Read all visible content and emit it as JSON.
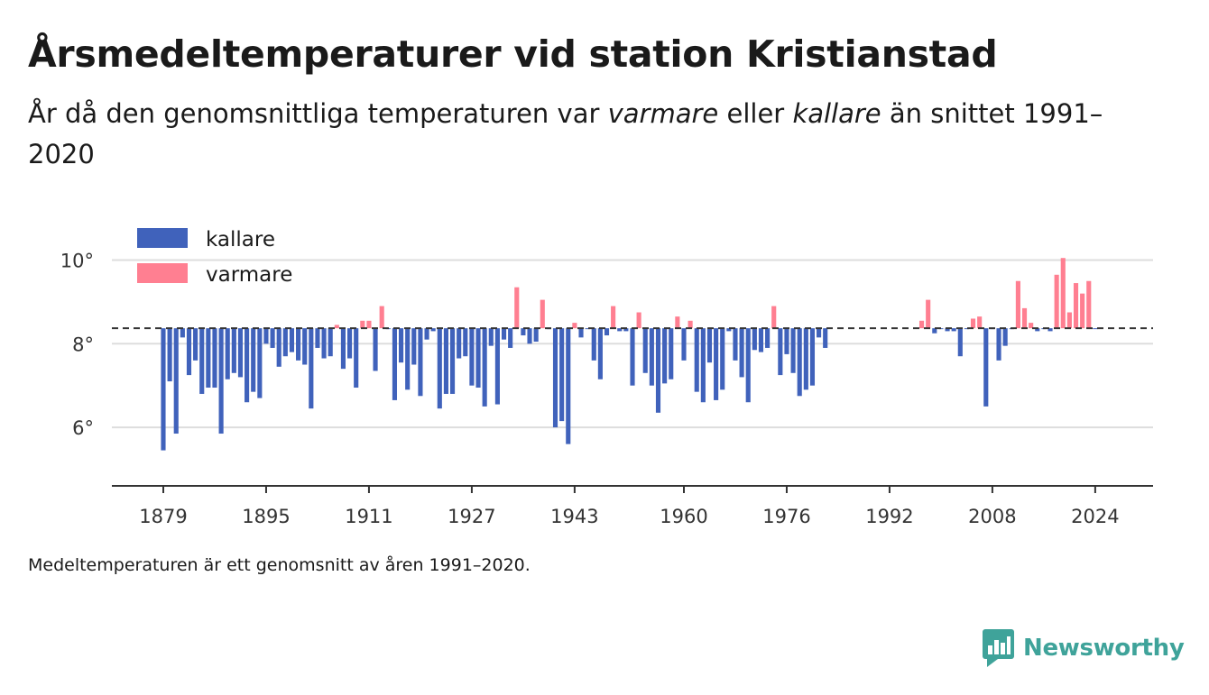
{
  "title": "Årsmedeltemperaturer vid station Kristianstad",
  "subtitle": {
    "part1": "År då den genomsnittliga temperaturen var ",
    "warmer": "varmare",
    "part2": " eller ",
    "colder": "kallare",
    "part3": " än snittet 1991–2020"
  },
  "note": "Medeltemperaturen är ett genomsnitt av åren 1991–2020.",
  "brand": "Newsworthy",
  "colors": {
    "colder": "#4062bb",
    "warmer": "#ff7f91",
    "grid": "#dddddd",
    "axis": "#333333",
    "brand": "#3fa39a"
  },
  "chart_data": {
    "type": "bar",
    "baseline": 8.37,
    "ylim": [
      4.6,
      10.4
    ],
    "yticks": [
      6,
      8,
      10
    ],
    "ytick_labels": [
      "6°",
      "8°",
      "10°"
    ],
    "xlim": [
      1871,
      2033
    ],
    "xticks": [
      1879,
      1895,
      1911,
      1927,
      1943,
      1960,
      1976,
      1992,
      2008,
      2024
    ],
    "grid": true,
    "legend_position": "top-left",
    "legend": [
      {
        "key": "colder",
        "label": "kallare"
      },
      {
        "key": "warmer",
        "label": "varmare"
      }
    ],
    "x": [
      1879,
      1880,
      1881,
      1882,
      1883,
      1884,
      1885,
      1886,
      1887,
      1888,
      1889,
      1890,
      1891,
      1892,
      1893,
      1894,
      1895,
      1896,
      1897,
      1898,
      1899,
      1900,
      1901,
      1902,
      1903,
      1904,
      1905,
      1906,
      1907,
      1908,
      1909,
      1910,
      1911,
      1912,
      1913,
      1914,
      1915,
      1916,
      1917,
      1918,
      1919,
      1920,
      1921,
      1922,
      1923,
      1924,
      1925,
      1926,
      1927,
      1928,
      1929,
      1930,
      1931,
      1932,
      1933,
      1934,
      1935,
      1936,
      1937,
      1938,
      1939,
      1940,
      1941,
      1942,
      1943,
      1944,
      1945,
      1946,
      1947,
      1948,
      1949,
      1950,
      1951,
      1952,
      1953,
      1954,
      1955,
      1956,
      1957,
      1958,
      1959,
      1960,
      1961,
      1962,
      1963,
      1964,
      1965,
      1966,
      1967,
      1968,
      1969,
      1970,
      1971,
      1972,
      1973,
      1974,
      1975,
      1976,
      1977,
      1978,
      1979,
      1980,
      1981,
      1982,
      1997,
      1998,
      1999,
      2000,
      2001,
      2002,
      2003,
      2004,
      2005,
      2006,
      2007,
      2008,
      2009,
      2010,
      2011,
      2012,
      2013,
      2014,
      2015,
      2016,
      2017,
      2018,
      2019,
      2020,
      2021,
      2022,
      2023,
      2024
    ],
    "values": [
      5.45,
      7.1,
      5.85,
      8.15,
      7.25,
      7.6,
      6.8,
      6.95,
      6.95,
      5.85,
      7.15,
      7.3,
      7.2,
      6.6,
      6.85,
      6.7,
      8.0,
      7.9,
      7.45,
      7.7,
      7.8,
      7.6,
      7.5,
      6.45,
      7.9,
      7.65,
      7.7,
      8.45,
      7.4,
      7.65,
      6.95,
      8.55,
      8.55,
      7.35,
      8.9,
      8.35,
      6.65,
      7.55,
      6.9,
      7.5,
      6.75,
      8.1,
      8.3,
      6.45,
      6.8,
      6.8,
      7.65,
      7.7,
      7.0,
      6.95,
      6.5,
      7.95,
      6.55,
      8.1,
      7.9,
      9.35,
      8.2,
      8.0,
      8.05,
      9.05,
      8.35,
      6.0,
      6.15,
      5.6,
      8.5,
      8.15,
      8.35,
      7.6,
      7.15,
      8.2,
      8.9,
      8.3,
      8.3,
      7.0,
      8.75,
      7.3,
      7.0,
      6.35,
      7.05,
      7.15,
      8.65,
      7.6,
      8.55,
      6.85,
      6.6,
      7.55,
      6.65,
      6.9,
      8.3,
      7.6,
      7.2,
      6.6,
      7.85,
      7.8,
      7.9,
      8.9,
      7.25,
      7.75,
      7.3,
      6.75,
      6.9,
      7.0,
      8.15,
      7.9,
      8.55,
      9.05,
      8.25,
      8.35,
      8.3,
      8.3,
      7.7,
      8.35,
      8.6,
      8.65,
      6.5,
      8.35,
      7.6,
      7.95,
      8.35,
      9.5,
      8.85,
      8.5,
      8.3,
      8.35,
      8.3,
      9.65,
      10.05,
      8.75,
      9.45,
      9.2,
      9.5,
      8.35
    ]
  }
}
